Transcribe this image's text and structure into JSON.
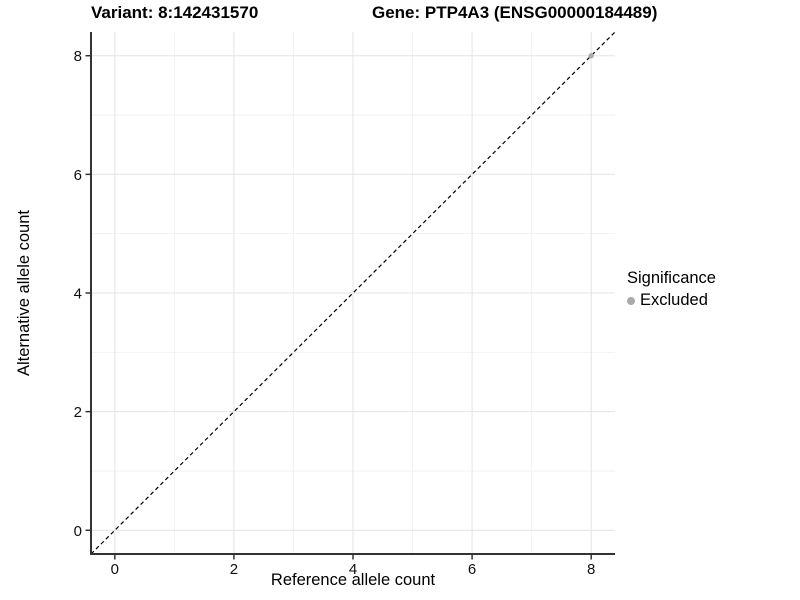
{
  "titles": {
    "variant": "Variant: 8:142431570",
    "gene": "Gene: PTP4A3 (ENSG00000184489)"
  },
  "legend": {
    "title": "Significance",
    "items": [
      {
        "label": "Excluded",
        "color": "#aaaaaa"
      }
    ]
  },
  "chart_data": {
    "type": "scatter",
    "xlabel": "Reference allele count",
    "ylabel": "Alternative allele count",
    "xlim": [
      -0.4,
      8.4
    ],
    "ylim": [
      -0.4,
      8.4
    ],
    "xticks": [
      0,
      2,
      4,
      6,
      8
    ],
    "yticks": [
      0,
      2,
      4,
      6,
      8
    ],
    "minor_xticks": [
      1,
      3,
      5,
      7
    ],
    "minor_yticks": [
      1,
      3,
      5,
      7
    ],
    "grid": "on",
    "legend_position": "right",
    "series": [
      {
        "name": "Excluded",
        "color": "#aaaaaa",
        "points": [
          [
            8,
            8
          ]
        ]
      }
    ],
    "reference_line": {
      "slope": 1,
      "intercept": 0,
      "style": "dashed",
      "color": "#000000"
    },
    "style": {
      "background": "#ffffff",
      "grid_major": "#e4e4e4",
      "grid_minor": "#f2f2f2",
      "axis_line": "#333333",
      "tick_color": "#333333",
      "tick_label_color": "#111111",
      "point_radius": 2.7
    }
  }
}
